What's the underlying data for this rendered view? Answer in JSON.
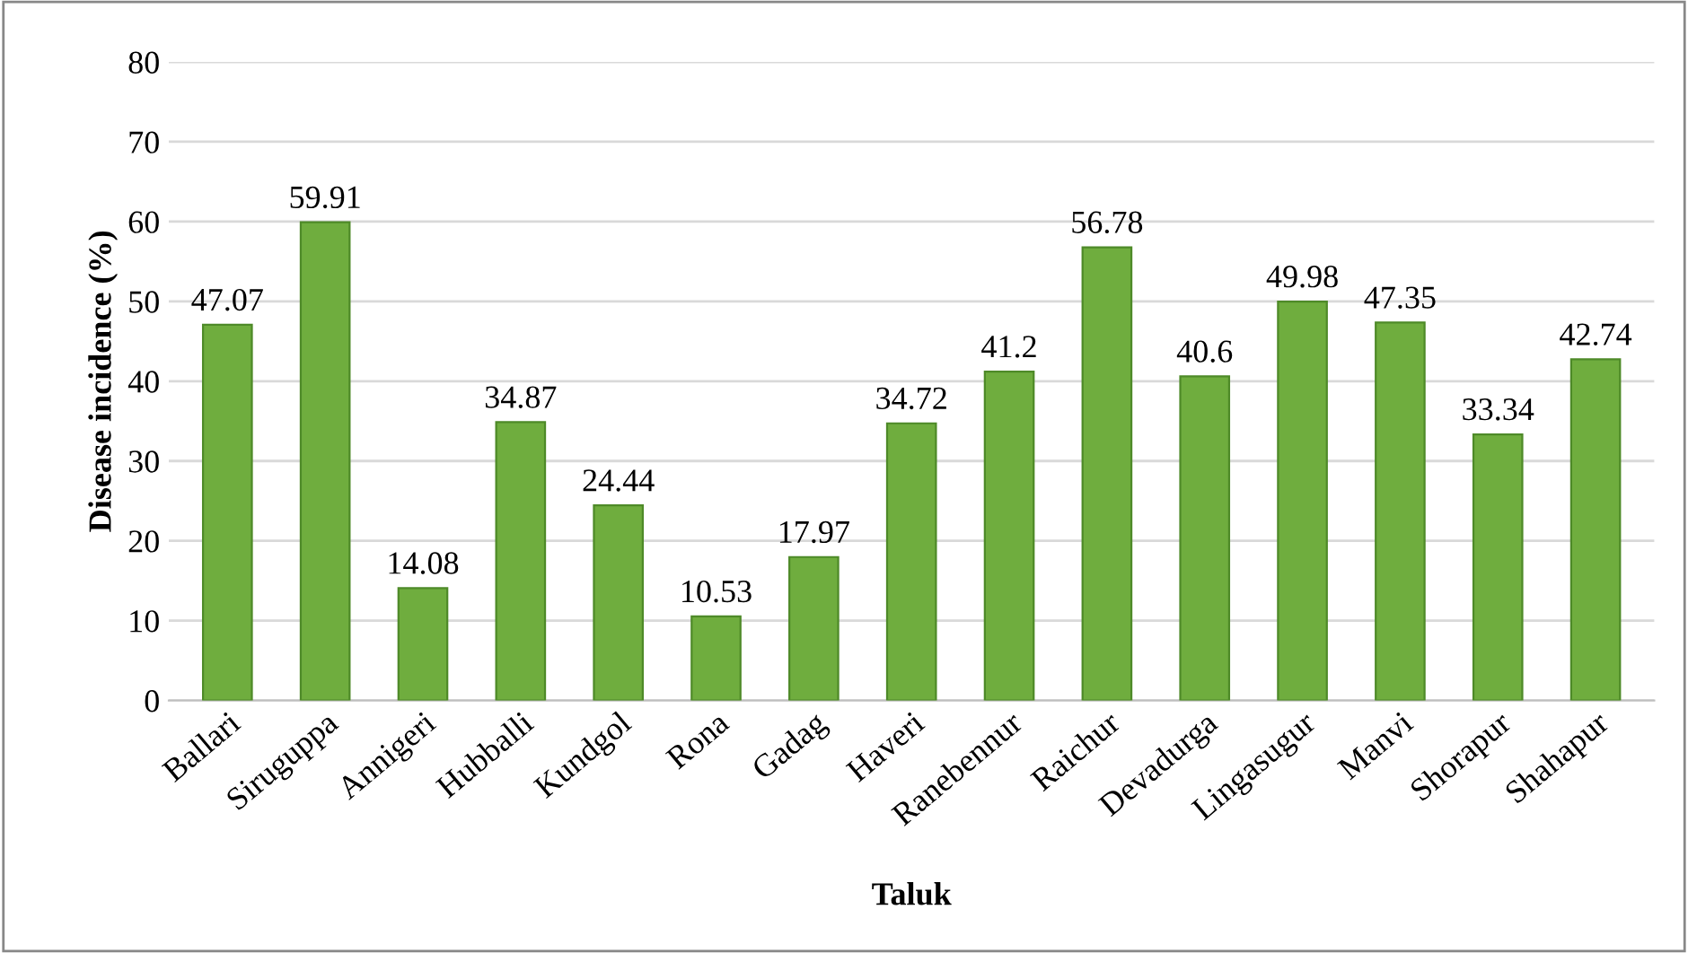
{
  "chart_data": {
    "type": "bar",
    "xlabel": "Taluk",
    "ylabel": "Disease incidence (%)",
    "categories": [
      "Ballari",
      "Siruguppa",
      "Annigeri",
      "Hubballi",
      "Kundgol",
      "Rona",
      "Gadag",
      "Haveri",
      "Ranebennur",
      "Raichur",
      "Devadurga",
      "Lingasugur",
      "Manvi",
      "Shorapur",
      "Shahapur"
    ],
    "values": [
      47.07,
      59.91,
      14.08,
      34.87,
      24.44,
      10.53,
      17.97,
      34.72,
      41.2,
      56.78,
      40.6,
      49.98,
      47.35,
      33.34,
      42.74
    ],
    "color": "#6fad3e",
    "ylim": [
      0,
      80
    ],
    "yticks": [
      0,
      10,
      20,
      30,
      40,
      50,
      60,
      70,
      80
    ],
    "grid": "y",
    "data_labels": true
  }
}
